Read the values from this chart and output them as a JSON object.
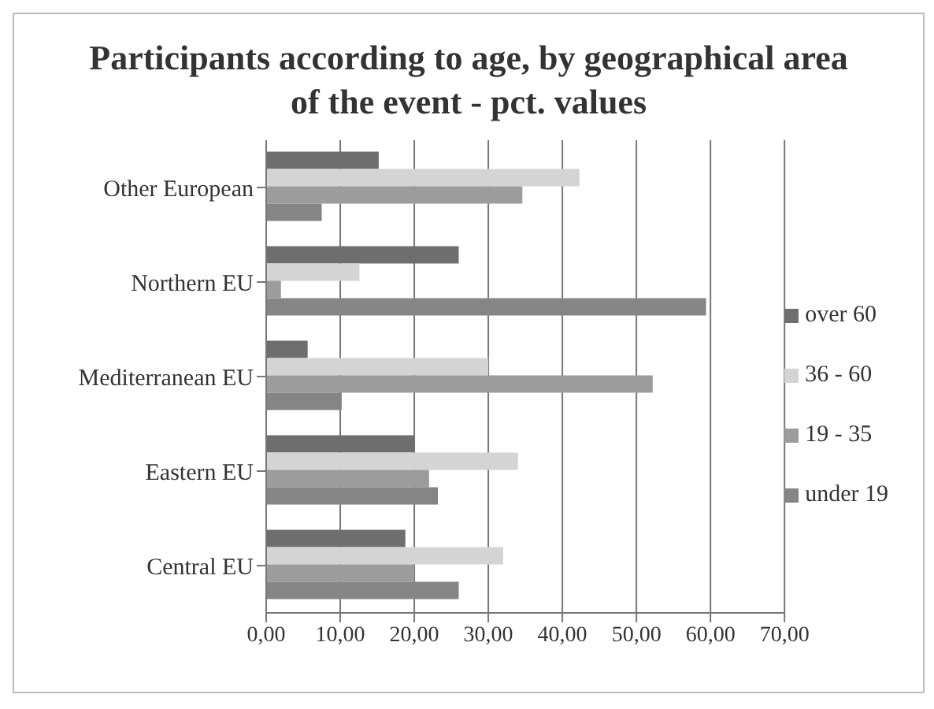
{
  "chart_data": {
    "type": "bar",
    "orientation": "horizontal",
    "title": "Participants according to age, by geographical area of the event - pct. values",
    "categories": [
      "Other European",
      "Northern EU",
      "Mediterranean EU",
      "Eastern EU",
      "Central EU"
    ],
    "series": [
      {
        "name": "over 60",
        "color": "#6e6e6e",
        "values": [
          15.2,
          26,
          5.6,
          20,
          18.8
        ]
      },
      {
        "name": "36 - 60",
        "color": "#d4d4d4",
        "values": [
          42.3,
          12.6,
          30,
          34,
          32
        ]
      },
      {
        "name": "19 - 35",
        "color": "#9c9c9c",
        "values": [
          34.6,
          2,
          52.2,
          22,
          20
        ]
      },
      {
        "name": "under 19",
        "color": "#858585",
        "values": [
          7.5,
          59.4,
          10.2,
          23.2,
          26
        ]
      }
    ],
    "xlim": [
      0,
      70
    ],
    "xticks": [
      {
        "value": 0,
        "label": "0,00"
      },
      {
        "value": 10,
        "label": "10,00"
      },
      {
        "value": 20,
        "label": "20,00"
      },
      {
        "value": 30,
        "label": "30,00"
      },
      {
        "value": 40,
        "label": "40,00"
      },
      {
        "value": 50,
        "label": "50,00"
      },
      {
        "value": 60,
        "label": "60,00"
      },
      {
        "value": 70,
        "label": "70,00"
      }
    ],
    "grid": "x",
    "legend": "right"
  }
}
